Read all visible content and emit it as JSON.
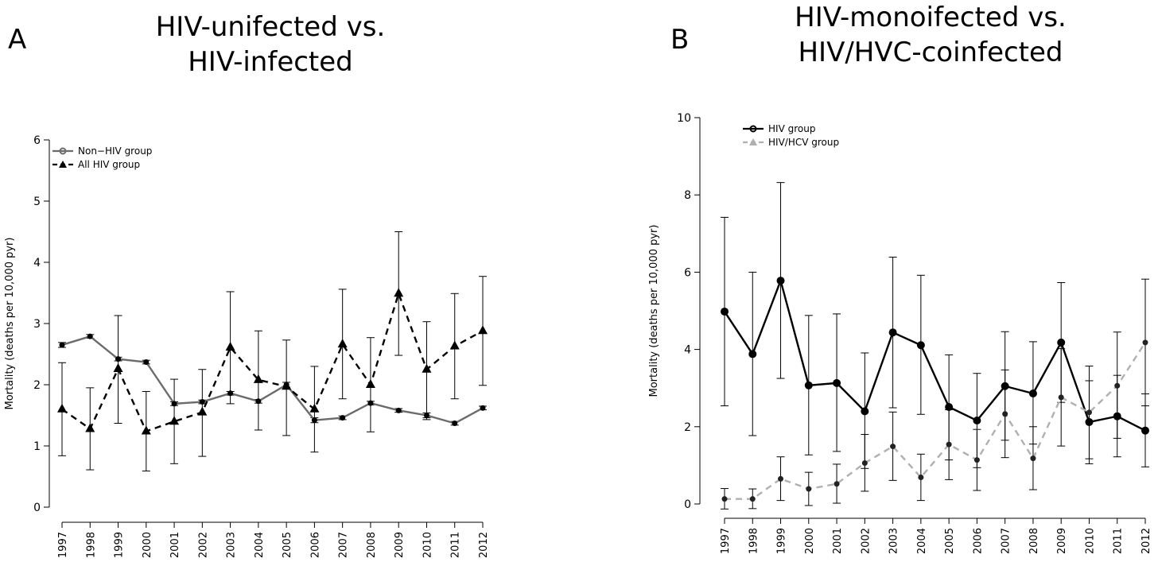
{
  "chart_data": [
    {
      "panel_label": "A",
      "type": "line",
      "title_lines": [
        "HIV-unifected vs.",
        "HIV-infected"
      ],
      "xlabel": "",
      "ylabel": "Mortality  (deaths per 10,000 pyr)",
      "ylim": [
        0,
        6
      ],
      "yticks": [
        0,
        1,
        2,
        3,
        4,
        5,
        6
      ],
      "x": [
        "1997",
        "1998",
        "1999",
        "2000",
        "2001",
        "2002",
        "2003",
        "2004",
        "2005",
        "2006",
        "2007",
        "2008",
        "2009",
        "2010",
        "2011",
        "2012"
      ],
      "legend_position": "top-left",
      "series": [
        {
          "name": "Non−HIV group",
          "color": "#6b6b6b",
          "line_style": "solid",
          "marker": "circle",
          "values": [
            2.65,
            2.79,
            2.42,
            2.37,
            1.69,
            1.72,
            1.86,
            1.73,
            2.0,
            1.42,
            1.46,
            1.7,
            1.58,
            1.5,
            1.37,
            1.62
          ],
          "lower": [
            2.61,
            2.76,
            2.39,
            2.34,
            1.66,
            1.69,
            1.83,
            1.7,
            1.96,
            1.38,
            1.43,
            1.67,
            1.55,
            1.46,
            1.34,
            1.59
          ],
          "upper": [
            2.69,
            2.82,
            2.45,
            2.4,
            1.72,
            1.75,
            1.89,
            1.76,
            2.04,
            1.46,
            1.49,
            1.73,
            1.61,
            1.54,
            1.4,
            1.65
          ]
        },
        {
          "name": "All HIV group",
          "color": "#000000",
          "line_style": "dashed",
          "marker": "triangle",
          "values": [
            1.6,
            1.28,
            2.26,
            1.24,
            1.4,
            1.55,
            2.61,
            2.08,
            1.97,
            1.6,
            2.66,
            2.0,
            3.49,
            2.25,
            2.63,
            2.88
          ],
          "lower": [
            0.84,
            0.61,
            1.37,
            0.59,
            0.71,
            0.83,
            1.69,
            1.26,
            1.17,
            0.9,
            1.77,
            1.23,
            2.48,
            1.43,
            1.77,
            1.99
          ],
          "upper": [
            2.36,
            1.95,
            3.13,
            1.89,
            2.09,
            2.25,
            3.52,
            2.88,
            2.73,
            2.3,
            3.56,
            2.77,
            4.5,
            3.03,
            3.49,
            3.77
          ]
        }
      ]
    },
    {
      "panel_label": "B",
      "type": "line",
      "title_lines": [
        "HIV-monoifected vs.",
        "HIV/HVC-coinfected"
      ],
      "xlabel": "",
      "ylabel": "Mortality  (deaths per 10,000 pyr)",
      "ylim": [
        0,
        10
      ],
      "yticks": [
        0,
        2,
        4,
        6,
        8,
        10
      ],
      "x": [
        "1997",
        "1998",
        "1999",
        "2000",
        "2001",
        "2002",
        "2003",
        "2004",
        "2005",
        "2006",
        "2007",
        "2008",
        "2009",
        "2010",
        "2011",
        "2012"
      ],
      "legend_position": "top-left",
      "series": [
        {
          "name": "HIV group",
          "color": "#000000",
          "line_style": "solid",
          "marker": "circle",
          "values": [
            4.98,
            3.88,
            5.78,
            3.07,
            3.13,
            2.4,
            4.44,
            4.11,
            2.51,
            2.16,
            3.05,
            2.86,
            4.18,
            2.12,
            2.27,
            1.9
          ],
          "lower": [
            2.54,
            1.77,
            3.25,
            1.27,
            1.36,
            0.92,
            2.49,
            2.32,
            1.14,
            0.94,
            1.65,
            1.55,
            2.63,
            1.17,
            1.22,
            0.96
          ],
          "upper": [
            7.42,
            6.0,
            8.32,
            4.88,
            4.92,
            3.91,
            6.39,
            5.92,
            3.86,
            3.38,
            4.46,
            4.2,
            5.73,
            3.57,
            3.33,
            2.85
          ]
        },
        {
          "name": "HIV/HCV group",
          "color": "#b0b0b0",
          "line_style": "dashed",
          "marker": "triangle",
          "values": [
            0.13,
            0.13,
            0.65,
            0.39,
            0.52,
            1.06,
            1.49,
            0.69,
            1.54,
            1.14,
            2.33,
            1.18,
            2.76,
            2.37,
            3.06,
            4.18
          ],
          "lower": [
            -0.13,
            -0.12,
            0.09,
            -0.04,
            0.02,
            0.33,
            0.61,
            0.09,
            0.63,
            0.35,
            1.2,
            0.37,
            1.5,
            1.04,
            1.7,
            2.54
          ],
          "upper": [
            0.4,
            0.39,
            1.22,
            0.82,
            1.03,
            1.8,
            2.38,
            1.29,
            2.44,
            1.93,
            3.47,
            2.0,
            4.02,
            3.19,
            4.45,
            5.82
          ]
        }
      ]
    }
  ]
}
